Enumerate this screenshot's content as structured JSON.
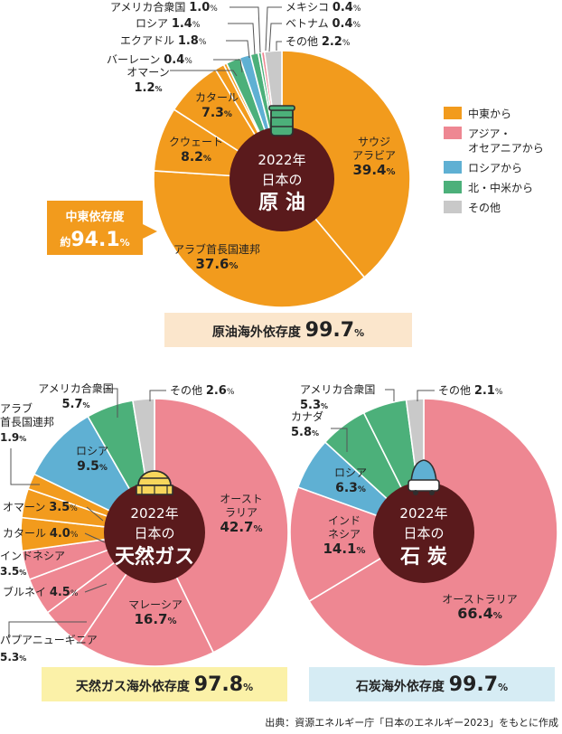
{
  "legend": [
    {
      "label": "中東から",
      "color": "#f29b1d"
    },
    {
      "label": "アジア・\nオセアニアから",
      "color": "#ee8792"
    },
    {
      "label": "ロシアから",
      "color": "#5fb0d3"
    },
    {
      "label": "北・中米から",
      "color": "#4cb07a"
    },
    {
      "label": "その他",
      "color": "#c9c9c9"
    }
  ],
  "callout": {
    "line1": "中東依存度",
    "prefix": "約",
    "value": "94.1",
    "unit": "%"
  },
  "source": "出典：資源エネルギー庁「日本のエネルギー2023」をもとに作成",
  "chart_data": [
    {
      "type": "pie",
      "center": [
        "2022年",
        "日本の",
        "原 油"
      ],
      "dependency": {
        "label": "原油海外依存度",
        "value": "99.7",
        "unit": "%"
      },
      "slices": [
        {
          "name": "サウジ\nアラビア",
          "value": 39.4,
          "region": "中東"
        },
        {
          "name": "アラブ首長国連邦",
          "value": 37.6,
          "region": "中東"
        },
        {
          "name": "クウェート",
          "value": 8.2,
          "region": "中東"
        },
        {
          "name": "カタール",
          "value": 7.3,
          "region": "中東"
        },
        {
          "name": "オマーン",
          "value": 1.2,
          "region": "中東"
        },
        {
          "name": "バーレーン",
          "value": 0.4,
          "region": "中東"
        },
        {
          "name": "エクアドル",
          "value": 1.8,
          "region": "北・中米"
        },
        {
          "name": "ロシア",
          "value": 1.4,
          "region": "ロシア"
        },
        {
          "name": "アメリカ合衆国",
          "value": 1.0,
          "region": "北・中米"
        },
        {
          "name": "メキシコ",
          "value": 0.4,
          "region": "北・中米"
        },
        {
          "name": "ベトナム",
          "value": 0.4,
          "region": "アジア・オセアニア"
        },
        {
          "name": "その他",
          "value": 2.2,
          "region": "その他"
        }
      ]
    },
    {
      "type": "pie",
      "center": [
        "2022年",
        "日本の",
        "天然ガス"
      ],
      "dependency": {
        "label": "天然ガス海外依存度",
        "value": "97.8",
        "unit": "%"
      },
      "slices": [
        {
          "name": "オースト\nラリア",
          "value": 42.7,
          "region": "アジア・オセアニア"
        },
        {
          "name": "マレーシア",
          "value": 16.7,
          "region": "アジア・オセアニア"
        },
        {
          "name": "パプアニューギニア",
          "value": 5.3,
          "region": "アジア・オセアニア"
        },
        {
          "name": "ブルネイ",
          "value": 4.5,
          "region": "アジア・オセアニア"
        },
        {
          "name": "インドネシア",
          "value": 3.5,
          "region": "アジア・オセアニア"
        },
        {
          "name": "カタール",
          "value": 4.0,
          "region": "中東"
        },
        {
          "name": "オマーン",
          "value": 3.5,
          "region": "中東"
        },
        {
          "name": "アラブ\n首長国連邦",
          "value": 1.9,
          "region": "中東"
        },
        {
          "name": "ロシア",
          "value": 9.5,
          "region": "ロシア"
        },
        {
          "name": "アメリカ合衆国",
          "value": 5.7,
          "region": "北・中米"
        },
        {
          "name": "その他",
          "value": 2.6,
          "region": "その他"
        }
      ]
    },
    {
      "type": "pie",
      "center": [
        "2022年",
        "日本の",
        "石 炭"
      ],
      "dependency": {
        "label": "石炭海外依存度",
        "value": "99.7",
        "unit": "%"
      },
      "slices": [
        {
          "name": "オーストラリア",
          "value": 66.4,
          "region": "アジア・オセアニア"
        },
        {
          "name": "インド\nネシア",
          "value": 14.1,
          "region": "アジア・オセアニア"
        },
        {
          "name": "ロシア",
          "value": 6.3,
          "region": "ロシア"
        },
        {
          "name": "カナダ",
          "value": 5.8,
          "region": "北・中米"
        },
        {
          "name": "アメリカ合衆国",
          "value": 5.3,
          "region": "北・中米"
        },
        {
          "name": "その他",
          "value": 2.1,
          "region": "その他"
        }
      ]
    }
  ]
}
